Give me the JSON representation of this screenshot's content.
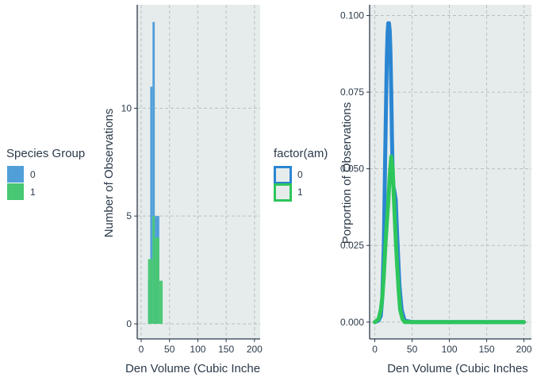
{
  "chart_data": [
    {
      "type": "histogram",
      "xlabel": "Den Volume (Cubic Inche",
      "ylabel": "Number of Observations",
      "xlim": [
        -7,
        210
      ],
      "ylim": [
        -0.7,
        14.8
      ],
      "x_ticks": [
        0,
        50,
        100,
        150,
        200
      ],
      "y_ticks": [
        0,
        5,
        10
      ],
      "legend": {
        "title": "Species Group",
        "position": "left"
      },
      "series": [
        {
          "name": "0",
          "color": "#519fd9",
          "bins": [
            {
              "x0": 12,
              "x1": 16,
              "count": 2
            },
            {
              "x0": 16,
              "x1": 20,
              "count": 11
            },
            {
              "x0": 20,
              "x1": 24,
              "count": 14
            },
            {
              "x0": 24,
              "x1": 28,
              "count": 5
            },
            {
              "x0": 28,
              "x1": 32,
              "count": 5
            }
          ]
        },
        {
          "name": "1",
          "color": "#48c872",
          "bins": [
            {
              "x0": 12,
              "x1": 16,
              "count": 3
            },
            {
              "x0": 16,
              "x1": 20,
              "count": 3
            },
            {
              "x0": 20,
              "x1": 24,
              "count": 5
            },
            {
              "x0": 24,
              "x1": 28,
              "count": 4
            },
            {
              "x0": 28,
              "x1": 32,
              "count": 4
            },
            {
              "x0": 32,
              "x1": 38,
              "count": 2
            }
          ]
        }
      ]
    },
    {
      "type": "line",
      "xlabel": "Den Volume (Cubic Inches",
      "ylabel": "Porportion of Observations",
      "xlim": [
        -7,
        210
      ],
      "ylim": [
        -0.0055,
        0.1035
      ],
      "x_ticks": [
        0,
        50,
        100,
        150,
        200
      ],
      "y_ticks": [
        0.0,
        0.025,
        0.05,
        0.075,
        0.1
      ],
      "y_tick_labels": [
        "0.000",
        "0.025",
        "0.050",
        "0.075",
        "0.100"
      ],
      "legend": {
        "title": "factor(am)",
        "position": "left"
      },
      "series": [
        {
          "name": "0",
          "color": "#2b86d2",
          "x": [
            0,
            5,
            8,
            10,
            12,
            14,
            16,
            17,
            18,
            19,
            20,
            21,
            22,
            23,
            24,
            25,
            26,
            28,
            30,
            33,
            36,
            40,
            50,
            100,
            150,
            200
          ],
          "y": [
            0,
            0.0005,
            0.002,
            0.008,
            0.025,
            0.055,
            0.085,
            0.094,
            0.0975,
            0.0975,
            0.095,
            0.088,
            0.075,
            0.06,
            0.048,
            0.044,
            0.043,
            0.04,
            0.028,
            0.012,
            0.004,
            0.0005,
            0,
            0,
            0,
            0
          ]
        },
        {
          "name": "1",
          "color": "#2dc65a",
          "x": [
            0,
            5,
            8,
            10,
            12,
            14,
            16,
            18,
            20,
            22,
            24,
            26,
            28,
            30,
            32,
            34,
            37,
            40,
            50,
            100,
            150,
            200
          ],
          "y": [
            0,
            0.001,
            0.004,
            0.008,
            0.015,
            0.024,
            0.032,
            0.039,
            0.048,
            0.054,
            0.05,
            0.038,
            0.027,
            0.018,
            0.01,
            0.004,
            0.001,
            0,
            0,
            0,
            0,
            0
          ]
        }
      ]
    }
  ]
}
